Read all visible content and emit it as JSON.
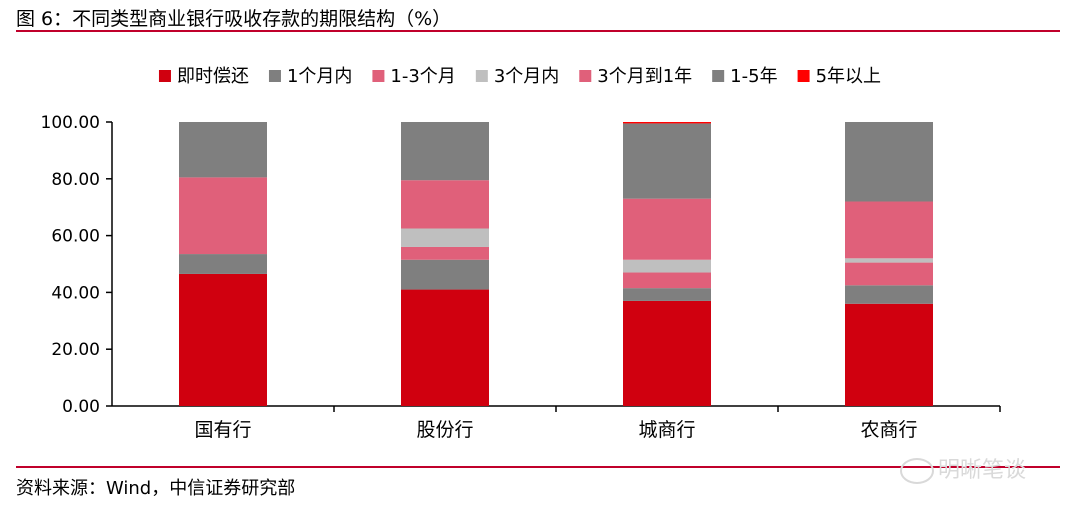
{
  "title": "图 6：不同类型商业银行吸收存款的期限结构（%）",
  "source": "资料来源：Wind，中信证券研究部",
  "watermark": "明晰笔谈",
  "chart_data": {
    "type": "bar",
    "stacked": true,
    "categories": [
      "国有行",
      "股份行",
      "城商行",
      "农商行"
    ],
    "ylim": [
      0,
      100
    ],
    "yticks": [
      "0.00",
      "20.00",
      "40.00",
      "60.00",
      "80.00",
      "100.00"
    ],
    "legend_position": "top",
    "series": [
      {
        "name": "即时偿还",
        "color": "#d0000f",
        "values": [
          46.5,
          41.0,
          37.0,
          36.0
        ]
      },
      {
        "name": "1个月内",
        "color": "#7f7f7f",
        "values": [
          7.0,
          10.5,
          4.5,
          6.5
        ]
      },
      {
        "name": "1-3个月",
        "color": "#e0607a",
        "values": [
          0.0,
          4.5,
          5.5,
          8.0
        ]
      },
      {
        "name": "3个月内",
        "color": "#bfbfbf",
        "values": [
          0.0,
          6.5,
          4.5,
          1.5
        ]
      },
      {
        "name": "3个月到1年",
        "color": "#e0607a",
        "values": [
          27.0,
          17.0,
          21.5,
          20.0
        ]
      },
      {
        "name": "1-5年",
        "color": "#7f7f7f",
        "values": [
          19.5,
          20.5,
          26.5,
          28.0
        ]
      },
      {
        "name": "5年以上",
        "color": "#ff0000",
        "values": [
          0.0,
          0.0,
          0.5,
          0.0
        ]
      }
    ]
  }
}
